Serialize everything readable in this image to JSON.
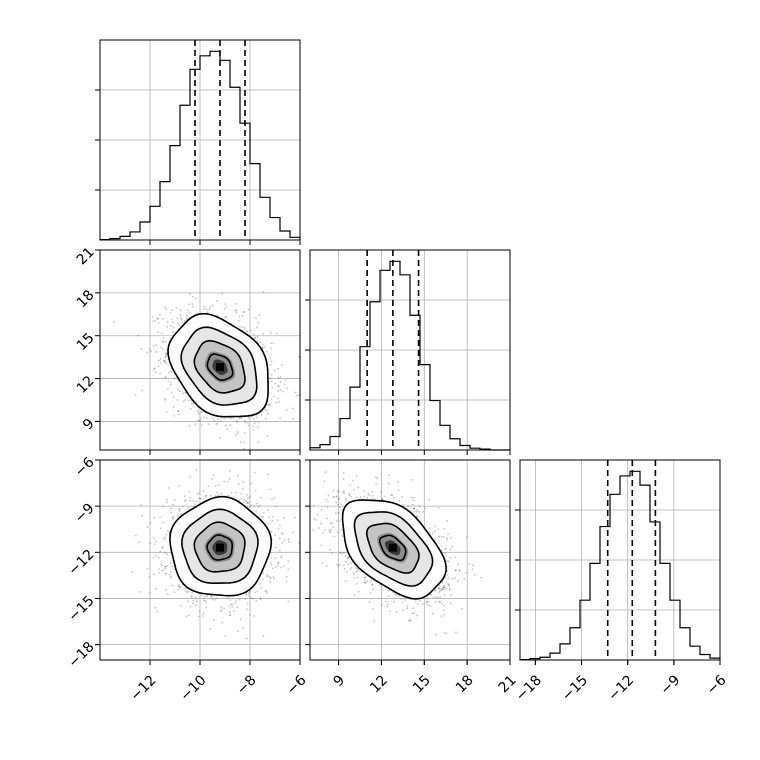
{
  "chart_data": {
    "type": "corner",
    "grid": true,
    "parameters": [
      {
        "range": [
          -14,
          -6
        ],
        "ticks": [
          -12,
          -10,
          -8,
          -6
        ],
        "tick_labels": [
          "−12",
          "−10",
          "−8",
          "−6"
        ],
        "quantiles": [
          -10.2,
          -9.2,
          -8.2
        ],
        "hist": {
          "edges": [
            -14.0,
            -13.6,
            -13.2,
            -12.8,
            -12.4,
            -12.0,
            -11.6,
            -11.2,
            -10.8,
            -10.4,
            -10.0,
            -9.6,
            -9.2,
            -8.8,
            -8.4,
            -8.0,
            -7.6,
            -7.2,
            -6.8,
            -6.4,
            -6.0
          ],
          "counts": [
            1,
            3,
            8,
            18,
            40,
            75,
            130,
            210,
            300,
            380,
            410,
            420,
            400,
            340,
            260,
            170,
            95,
            50,
            20,
            6
          ]
        }
      },
      {
        "range": [
          7,
          21
        ],
        "ticks": [
          9,
          12,
          15,
          18,
          21
        ],
        "tick_labels": [
          "9",
          "12",
          "15",
          "18",
          "21"
        ],
        "quantiles": [
          11.0,
          12.8,
          14.6
        ],
        "hist": {
          "edges": [
            7,
            7.7,
            8.4,
            9.1,
            9.8,
            10.5,
            11.2,
            11.9,
            12.6,
            13.3,
            14.0,
            14.7,
            15.4,
            16.1,
            16.8,
            17.5,
            18.2,
            18.9,
            19.6,
            20.3,
            21.0
          ],
          "counts": [
            5,
            12,
            30,
            70,
            140,
            230,
            330,
            400,
            420,
            390,
            300,
            190,
            110,
            55,
            25,
            10,
            4,
            2,
            0,
            0
          ]
        }
      },
      {
        "range": [
          -19,
          -6
        ],
        "ticks": [
          -18,
          -15,
          -12,
          -9,
          -6
        ],
        "tick_labels": [
          "−18",
          "−15",
          "−12",
          "−9",
          "−6"
        ],
        "quantiles": [
          -13.3,
          -11.7,
          -10.2
        ],
        "hist": {
          "edges": [
            -19.0,
            -18.35,
            -17.7,
            -17.05,
            -16.4,
            -15.75,
            -15.1,
            -14.45,
            -13.8,
            -13.15,
            -12.5,
            -11.85,
            -11.2,
            -10.55,
            -9.9,
            -9.25,
            -8.6,
            -7.95,
            -7.3,
            -6.65,
            -6.0
          ],
          "counts": [
            1,
            3,
            6,
            15,
            35,
            70,
            130,
            210,
            290,
            360,
            400,
            410,
            380,
            300,
            210,
            130,
            70,
            30,
            12,
            4
          ]
        }
      }
    ],
    "pairs": [
      {
        "row": 1,
        "col": 0,
        "mean": [
          -9.2,
          12.8
        ],
        "sigma": [
          1.0,
          1.8
        ],
        "rho": -0.3
      },
      {
        "row": 2,
        "col": 0,
        "mean": [
          -9.2,
          -11.7
        ],
        "sigma": [
          1.0,
          1.6
        ],
        "rho": 0.0
      },
      {
        "row": 2,
        "col": 1,
        "mean": [
          12.8,
          -11.7
        ],
        "sigma": [
          1.8,
          1.6
        ],
        "rho": -0.45
      }
    ]
  }
}
